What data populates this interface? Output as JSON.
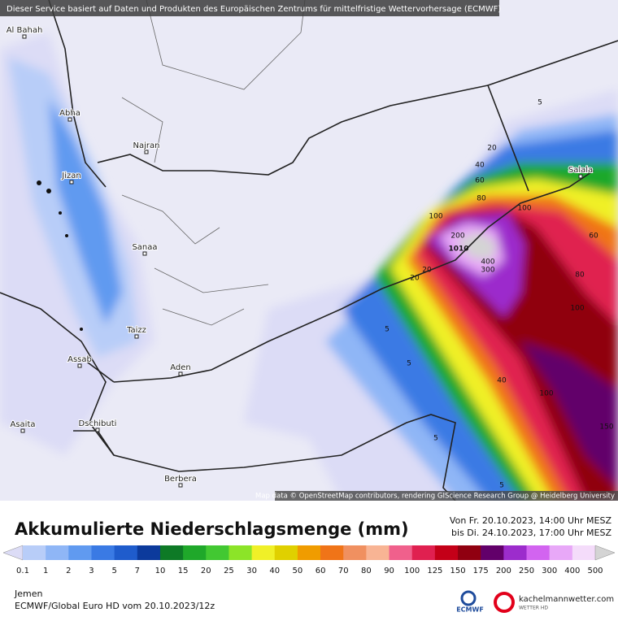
{
  "header": {
    "attribution": "Dieser Service basiert auf Daten und Produkten des Europäischen Zentrums für mittelfristige Wettervorhersage (ECMWF)"
  },
  "map": {
    "places": [
      "Al Bahah",
      "Abha",
      "Najran",
      "Jizan",
      "Sanaa",
      "Taizz",
      "Assab",
      "Aden",
      "Asaita",
      "Dschibuti",
      "Berbera",
      "Salala"
    ],
    "contour_labels": [
      "5",
      "20",
      "40",
      "60",
      "80",
      "100",
      "200",
      "300",
      "400",
      "1010",
      "20",
      "60",
      "100",
      "80",
      "100",
      "40",
      "100",
      "150",
      "5",
      "5",
      "5",
      "20",
      "5"
    ],
    "credit": "Map data © OpenStreetMap contributors, rendering GIScience Research Group @ Heidelberg University"
  },
  "legend": {
    "title": "Akkumulierte Niederschlagsmenge (mm)",
    "period": [
      "Von Fr. 20.10.2023, 14:00 Uhr MESZ",
      "bis Di. 24.10.2023, 17:00 Uhr MESZ"
    ],
    "ticks": [
      "0.1",
      "1",
      "2",
      "3",
      "5",
      "7",
      "10",
      "15",
      "20",
      "25",
      "30",
      "40",
      "50",
      "60",
      "70",
      "80",
      "90",
      "100",
      "125",
      "150",
      "175",
      "200",
      "250",
      "300",
      "400",
      "500"
    ],
    "colors": [
      "#dcdcf6",
      "#b8cdf8",
      "#8fb6f6",
      "#609af0",
      "#3a7ae4",
      "#1f5ccc",
      "#0c3a9c",
      "#0e7a26",
      "#1fa82a",
      "#42c832",
      "#8ce428",
      "#f0f028",
      "#e0d000",
      "#f09c00",
      "#f07418",
      "#f09060",
      "#f8b494",
      "#f0608c",
      "#e02050",
      "#c40018",
      "#900010",
      "#62006a",
      "#9c2ccc",
      "#d264f0",
      "#e8a8f8",
      "#f4dcfa",
      "#d4d4d4"
    ]
  },
  "footer": {
    "region": "Jemen",
    "model": "ECMWF/Global Euro HD vom  20.10.2023/12z",
    "ecmwf": "ECMWF",
    "site": "kachelmannwetter.com",
    "site_sub": "WETTER HD"
  }
}
